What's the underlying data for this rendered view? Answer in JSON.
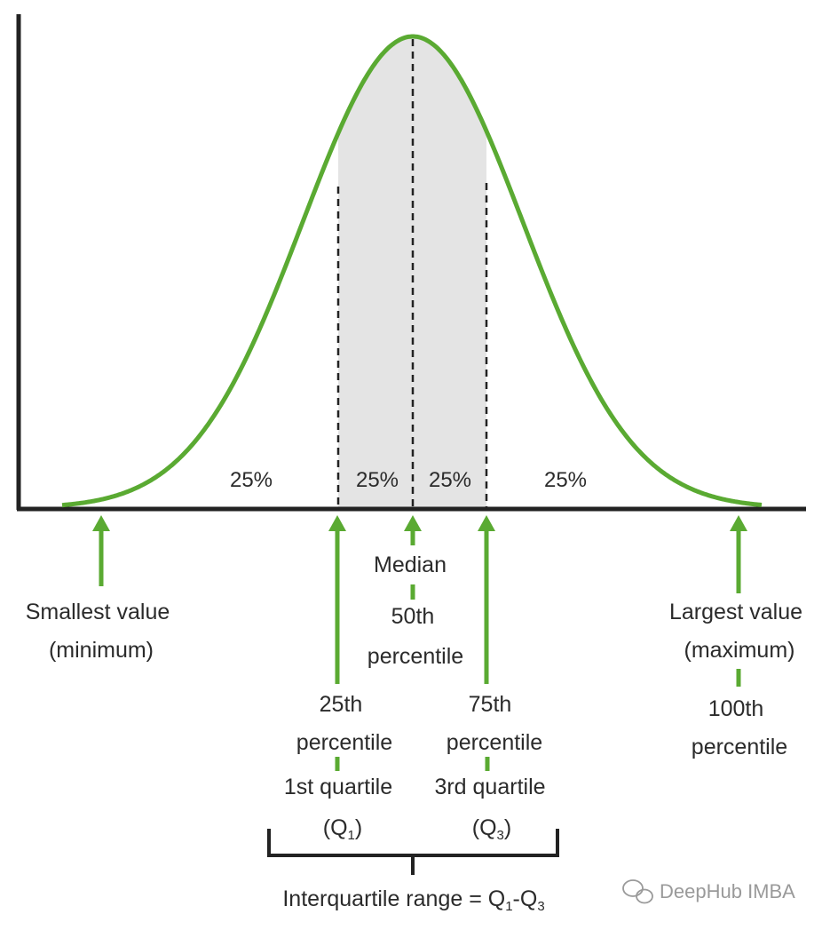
{
  "colors": {
    "curve": "#5aaa32",
    "axis": "#222222",
    "shade": "#e4e4e4",
    "text": "#2b2b2b"
  },
  "pct": {
    "left": "25%",
    "inner_left": "25%",
    "inner_right": "25%",
    "right": "25%"
  },
  "min": {
    "line1": "Smallest value",
    "line2": "(minimum)"
  },
  "median": {
    "line1": "Median",
    "line2": "50th",
    "line3": "percentile"
  },
  "max": {
    "line1": "Largest value",
    "line2": "(maximum)",
    "line3": "100th",
    "line4": "percentile"
  },
  "q1": {
    "line1": "25th",
    "line2": "percentile",
    "line3": "1st quartile",
    "sym_open": "(Q",
    "sym_sub": "1",
    "sym_close": ")"
  },
  "q3": {
    "line1": "75th",
    "line2": "percentile",
    "line3": "3rd quartile",
    "sym_open": "(Q",
    "sym_sub": "3",
    "sym_close": ")"
  },
  "iqr": {
    "text": "Interquartile range = Q",
    "sub1": "1",
    "dash": "-Q",
    "sub3": "3"
  },
  "watermark": {
    "text": "DeepHub IMBA",
    "icon": "wechat-icon"
  }
}
